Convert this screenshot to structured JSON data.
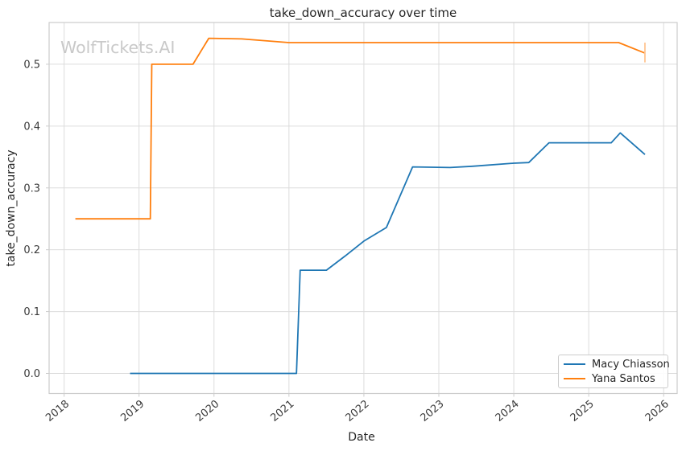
{
  "figure": {
    "watermark": "WolfTickets.AI"
  },
  "colors": {
    "background": "#ffffff",
    "grid": "#dcdcdc",
    "spine": "#cccccc",
    "text": "#262626",
    "tick_text": "#3a3a3a",
    "watermark": "#c9c9c9",
    "series_blue": "#1f77b4",
    "series_orange": "#ff7f0e",
    "error_bar": "#ffc592"
  },
  "chart_data": {
    "type": "line",
    "title": "take_down_accuracy over time",
    "xlabel": "Date",
    "ylabel": "take_down_accuracy",
    "grid": true,
    "xlim": [
      2017.8,
      2026.18
    ],
    "ylim": [
      -0.0325,
      0.5675
    ],
    "x_ticks": [
      2018,
      2019,
      2020,
      2021,
      2022,
      2023,
      2024,
      2025,
      2026
    ],
    "x_tick_labels": [
      "2018",
      "2019",
      "2020",
      "2021",
      "2022",
      "2023",
      "2024",
      "2025",
      "2026"
    ],
    "y_ticks": [
      0.0,
      0.1,
      0.2,
      0.3,
      0.4,
      0.5
    ],
    "y_tick_labels": [
      "0.0",
      "0.1",
      "0.2",
      "0.3",
      "0.4",
      "0.5"
    ],
    "legend": {
      "position": "lower right",
      "entries": [
        {
          "label": "Macy Chiasson",
          "color": "#1f77b4"
        },
        {
          "label": "Yana Santos",
          "color": "#ff7f0e"
        }
      ]
    },
    "series": [
      {
        "name": "Macy Chiasson",
        "color": "#1f77b4",
        "points": [
          [
            2018.88,
            0.0
          ],
          [
            2021.1,
            0.0
          ],
          [
            2021.15,
            0.167
          ],
          [
            2021.5,
            0.167
          ],
          [
            2021.75,
            0.19
          ],
          [
            2022.0,
            0.214
          ],
          [
            2022.3,
            0.236
          ],
          [
            2022.65,
            0.334
          ],
          [
            2023.15,
            0.333
          ],
          [
            2023.45,
            0.335
          ],
          [
            2024.0,
            0.34
          ],
          [
            2024.2,
            0.341
          ],
          [
            2024.47,
            0.373
          ],
          [
            2025.3,
            0.373
          ],
          [
            2025.42,
            0.389
          ],
          [
            2025.75,
            0.354
          ]
        ]
      },
      {
        "name": "Yana Santos",
        "color": "#ff7f0e",
        "points": [
          [
            2018.15,
            0.25
          ],
          [
            2019.15,
            0.25
          ],
          [
            2019.17,
            0.5
          ],
          [
            2019.72,
            0.5
          ],
          [
            2019.93,
            0.542
          ],
          [
            2020.37,
            0.541
          ],
          [
            2021.0,
            0.535
          ],
          [
            2025.4,
            0.535
          ],
          [
            2025.75,
            0.518
          ]
        ],
        "error_bar": {
          "x": 2025.75,
          "y_low": 0.503,
          "y_high": 0.535
        }
      }
    ]
  }
}
